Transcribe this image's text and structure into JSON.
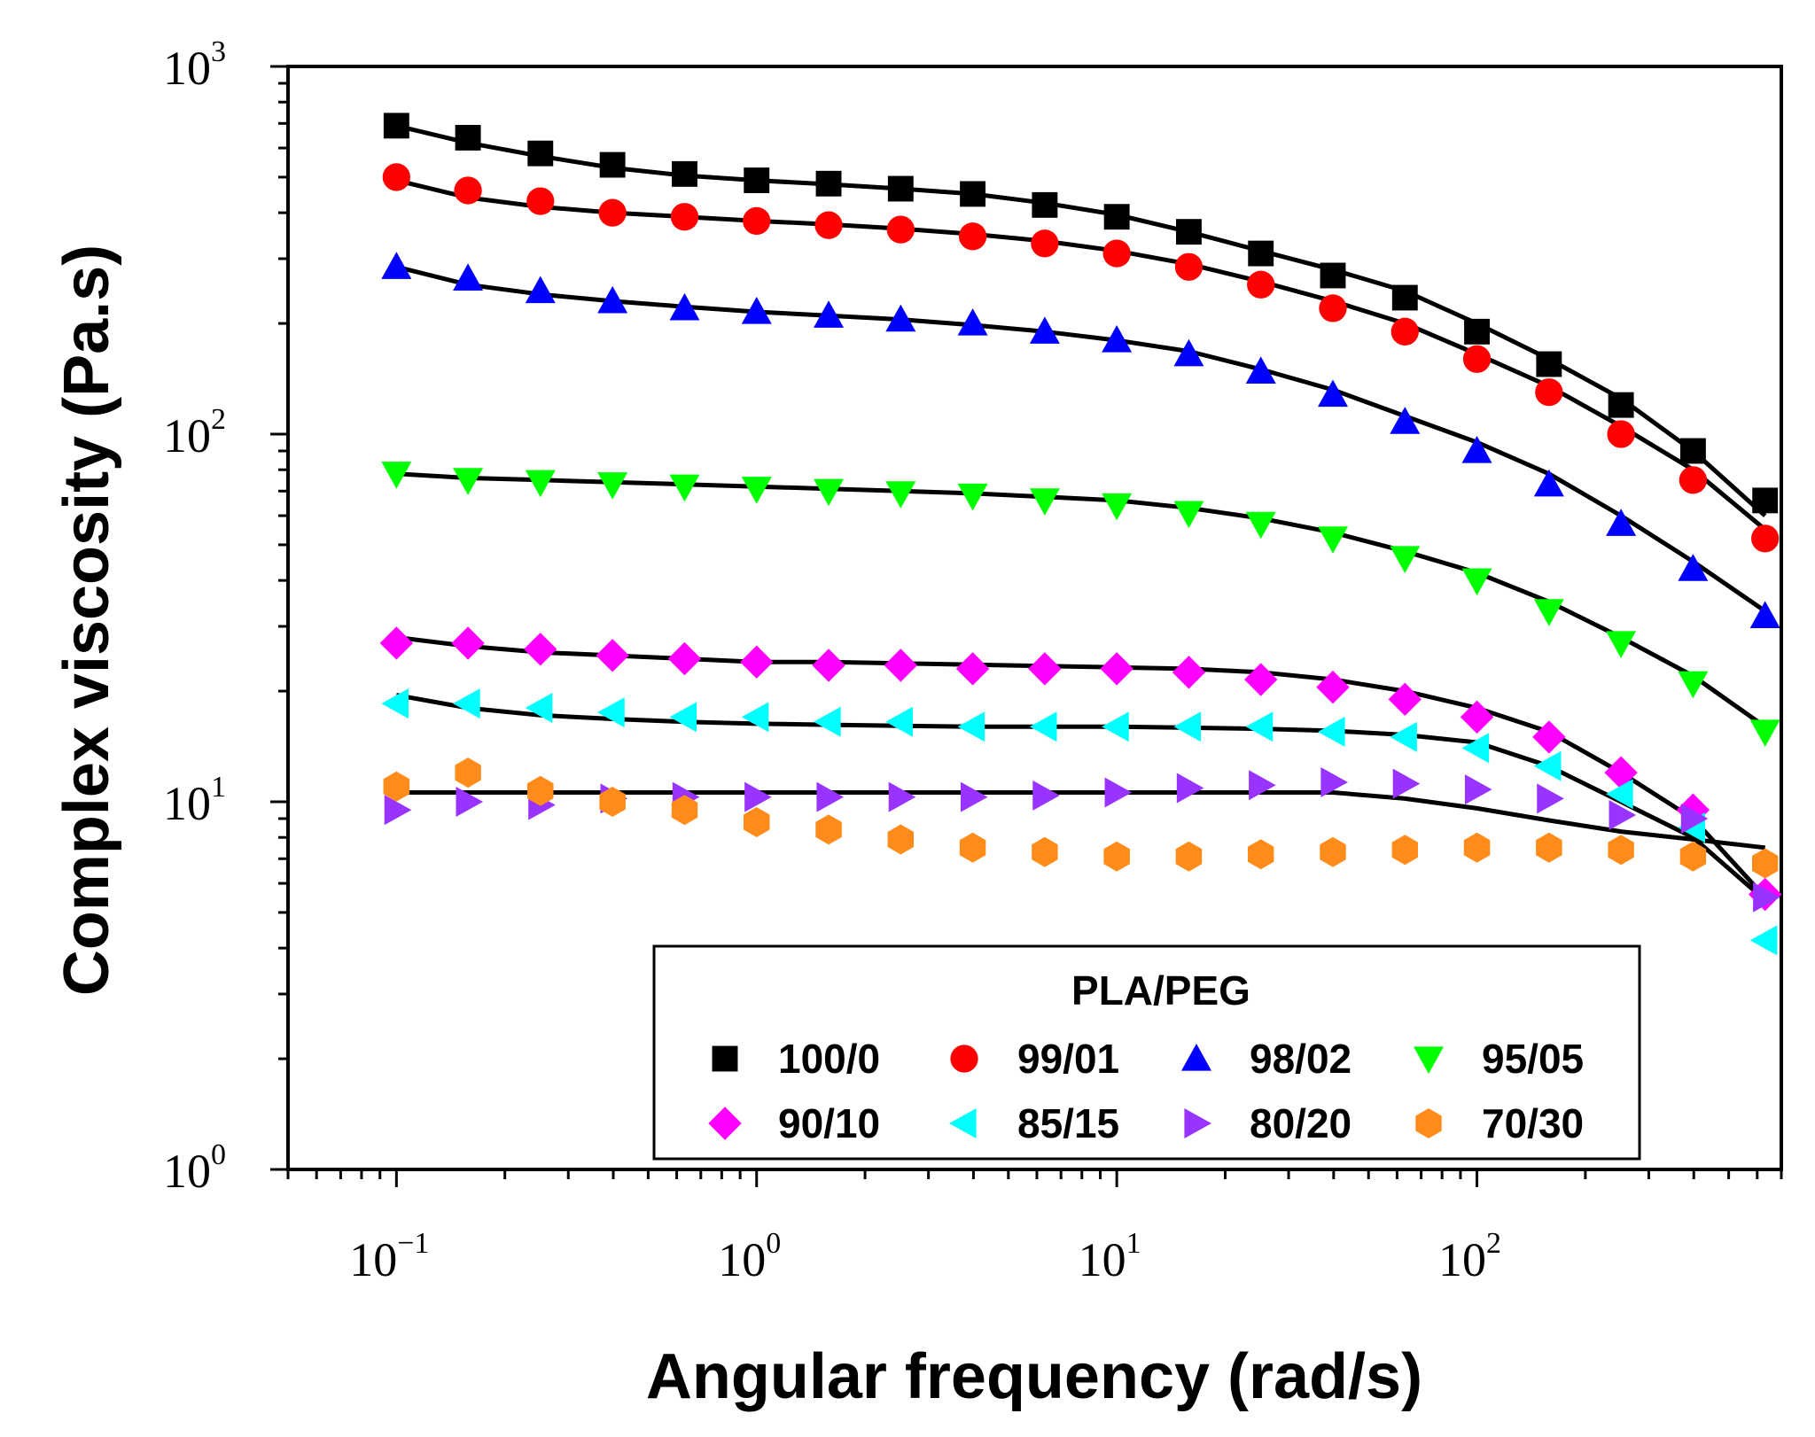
{
  "chart_data": {
    "type": "scatter",
    "x_scale": "log",
    "y_scale": "log",
    "xlabel": "Angular frequency (rad/s)",
    "ylabel": "Complex viscosity (Pa.s)",
    "xlim": [
      0.05,
      700
    ],
    "ylim": [
      1,
      1000
    ],
    "x_ticks": [
      {
        "base": "10",
        "exp": "−1",
        "value": 0.1
      },
      {
        "base": "10",
        "exp": "0",
        "value": 1
      },
      {
        "base": "10",
        "exp": "1",
        "value": 10
      },
      {
        "base": "10",
        "exp": "2",
        "value": 100
      }
    ],
    "y_ticks": [
      {
        "base": "10",
        "exp": "0",
        "value": 1
      },
      {
        "base": "10",
        "exp": "1",
        "value": 10
      },
      {
        "base": "10",
        "exp": "2",
        "value": 100
      },
      {
        "base": "10",
        "exp": "3",
        "value": 1000
      }
    ],
    "legend_title": "PLA/PEG",
    "legend_position": "bottom-right",
    "x": [
      0.1,
      0.158,
      0.251,
      0.398,
      0.631,
      1.0,
      1.585,
      2.512,
      3.981,
      6.31,
      10.0,
      15.85,
      25.12,
      39.81,
      63.1,
      100.0,
      158.5,
      251.2,
      398.1,
      631.0
    ],
    "series": [
      {
        "name": "100/0",
        "marker": "square",
        "color": "#000000",
        "values": [
          690,
          640,
          580,
          540,
          510,
          490,
          480,
          465,
          450,
          420,
          390,
          355,
          310,
          270,
          235,
          190,
          155,
          120,
          90,
          66
        ],
        "fit": [
          690,
          620,
          570,
          530,
          505,
          490,
          478,
          465,
          450,
          425,
          395,
          355,
          315,
          280,
          245,
          200,
          160,
          125,
          90,
          60
        ]
      },
      {
        "name": "99/01",
        "marker": "circle",
        "color": "#ff0000",
        "values": [
          500,
          460,
          430,
          400,
          390,
          380,
          370,
          360,
          345,
          330,
          310,
          285,
          255,
          220,
          190,
          160,
          130,
          100,
          75,
          52
        ],
        "fit": [
          490,
          440,
          415,
          400,
          390,
          380,
          372,
          362,
          350,
          335,
          315,
          290,
          260,
          230,
          200,
          165,
          135,
          105,
          80,
          55
        ]
      },
      {
        "name": "98/02",
        "marker": "triangle-up",
        "color": "#0000ff",
        "values": [
          285,
          265,
          245,
          230,
          220,
          215,
          210,
          205,
          200,
          190,
          180,
          165,
          148,
          128,
          108,
          90,
          73,
          57,
          43,
          32
        ],
        "fit": [
          285,
          255,
          240,
          230,
          222,
          215,
          210,
          205,
          198,
          190,
          180,
          168,
          150,
          132,
          112,
          95,
          78,
          60,
          45,
          33
        ]
      },
      {
        "name": "95/05",
        "marker": "triangle-down",
        "color": "#00ff00",
        "values": [
          78,
          75,
          74,
          73,
          72,
          71,
          70,
          69,
          68,
          66,
          64,
          61,
          57,
          52,
          46,
          40,
          33,
          27,
          21,
          15.5
        ],
        "fit": [
          78,
          76,
          75,
          74,
          73,
          72,
          71,
          70,
          69,
          67.5,
          66,
          63,
          59,
          54,
          48,
          42,
          35,
          28,
          22,
          16
        ]
      },
      {
        "name": "90/10",
        "marker": "diamond",
        "color": "#ff00ff",
        "values": [
          27,
          27,
          26,
          25,
          24.5,
          24,
          23.5,
          23.5,
          23,
          23,
          23,
          22.5,
          21.5,
          20.5,
          19,
          17,
          15,
          12,
          9.5,
          5.6
        ],
        "fit": [
          28,
          26.5,
          25.5,
          25,
          24.5,
          24,
          24,
          23.8,
          23.6,
          23.4,
          23.2,
          23,
          22.5,
          21.5,
          20,
          18,
          15.5,
          12,
          9,
          5.5
        ]
      },
      {
        "name": "85/15",
        "marker": "triangle-left",
        "color": "#00ffff",
        "values": [
          18.5,
          18.5,
          18,
          17.5,
          17,
          17,
          16.5,
          16.5,
          16,
          16,
          16,
          16,
          16,
          15.5,
          15,
          14,
          12.5,
          10.5,
          8.5,
          4.2
        ],
        "fit": [
          19.5,
          18,
          17.2,
          16.8,
          16.5,
          16.3,
          16.2,
          16.1,
          16,
          16,
          16,
          15.9,
          15.8,
          15.6,
          15.2,
          14.5,
          12.5,
          10,
          8,
          5.4
        ]
      },
      {
        "name": "80/20",
        "marker": "triangle-right",
        "color": "#9933ff",
        "values": [
          9.5,
          10,
          9.8,
          10.2,
          10.3,
          10.3,
          10.3,
          10.3,
          10.3,
          10.4,
          10.6,
          10.9,
          11.1,
          11.3,
          11.2,
          10.8,
          10.2,
          9.2,
          9.0,
          5.5
        ],
        "fit": [
          10.6,
          10.6,
          10.6,
          10.6,
          10.6,
          10.6,
          10.6,
          10.6,
          10.6,
          10.6,
          10.6,
          10.6,
          10.6,
          10.6,
          10.2,
          9.6,
          8.9,
          8.3,
          7.9,
          7.5
        ]
      },
      {
        "name": "70/30",
        "marker": "hexagon",
        "color": "#ff8c1a",
        "values": [
          11,
          12,
          10.7,
          10,
          9.5,
          8.8,
          8.4,
          7.9,
          7.5,
          7.3,
          7.1,
          7.1,
          7.2,
          7.3,
          7.4,
          7.5,
          7.5,
          7.4,
          7.1,
          6.8
        ],
        "fit": []
      }
    ]
  }
}
